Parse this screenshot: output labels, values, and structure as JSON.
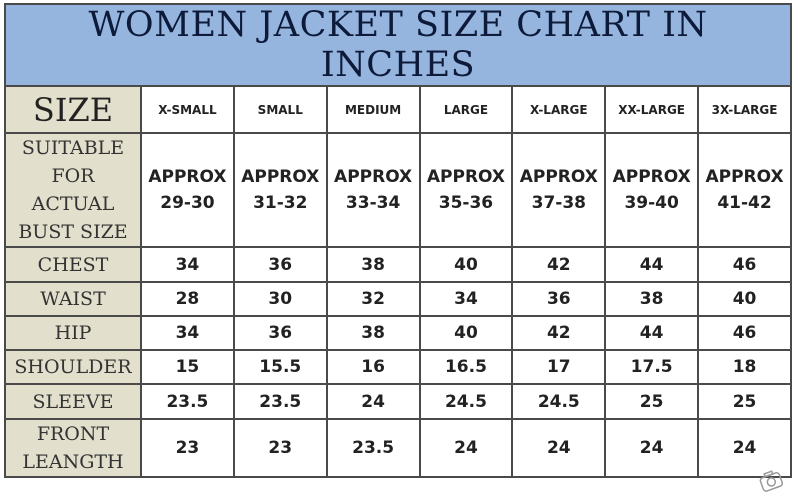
{
  "title": "WOMEN JACKET SIZE CHART IN INCHES",
  "size_label": "SIZE",
  "sizes": [
    "X-SMALL",
    "SMALL",
    "MEDIUM",
    "LARGE",
    "X-LARGE",
    "XX-LARGE",
    "3X-LARGE"
  ],
  "bust": {
    "label_lines": [
      "SUITABLE",
      "FOR",
      "ACTUAL",
      "BUST SIZE"
    ],
    "prefix": "APPROX",
    "values": [
      "29-30",
      "31-32",
      "33-34",
      "35-36",
      "37-38",
      "39-40",
      "41-42"
    ]
  },
  "rows": [
    {
      "label": "CHEST",
      "values": [
        "34",
        "36",
        "38",
        "40",
        "42",
        "44",
        "46"
      ]
    },
    {
      "label": "WAIST",
      "values": [
        "28",
        "30",
        "32",
        "34",
        "36",
        "38",
        "40"
      ]
    },
    {
      "label": "HIP",
      "values": [
        "34",
        "36",
        "38",
        "40",
        "42",
        "44",
        "46"
      ]
    },
    {
      "label": "SHOULDER",
      "values": [
        "15",
        "15.5",
        "16",
        "16.5",
        "17",
        "17.5",
        "18"
      ]
    },
    {
      "label": "SLEEVE",
      "values": [
        "23.5",
        "23.5",
        "24",
        "24.5",
        "24.5",
        "25",
        "25"
      ]
    },
    {
      "label_lines": [
        "FRONT",
        "LEANGTH"
      ],
      "values": [
        "23",
        "23",
        "23.5",
        "24",
        "24",
        "24",
        "24"
      ]
    }
  ],
  "watermark_icon": "camera-watermark-icon",
  "colors": {
    "title_bg": "#95b5df",
    "label_bg": "#e2dfcc"
  }
}
